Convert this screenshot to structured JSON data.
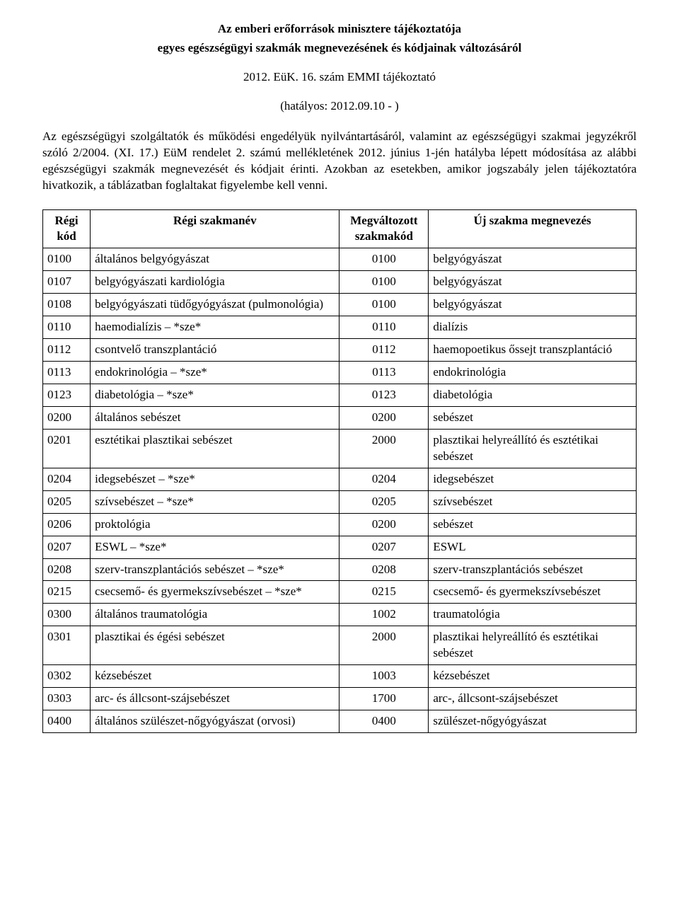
{
  "header": {
    "title": "Az emberi erőforrások minisztere tájékoztatója",
    "subtitle": "egyes egészségügyi szakmák megnevezésének és kódjainak változásáról",
    "reference": "2012. EüK. 16. szám EMMI tájékoztató",
    "effective": "(hatályos: 2012.09.10 - )"
  },
  "body": "Az egészségügyi szolgáltatók és működési engedélyük nyilvántartásáról, valamint az egészségügyi szakmai jegyzékről szóló 2/2004. (XI. 17.) EüM rendelet 2. számú mellékletének 2012. június 1-jén hatályba lépett módosítása az alábbi egészségügyi szakmák megnevezését és kódjait érinti. Azokban az esetekben, amikor jogszabály jelen tájékoztatóra hivatkozik, a táblázatban foglaltakat figyelembe kell venni.",
  "table": {
    "columns": {
      "old_code": "Régi kód",
      "old_name": "Régi szakmanév",
      "new_code": "Megváltozott szakmakód",
      "new_name": "Új szakma megnevezés"
    },
    "rows": [
      {
        "oc": "0100",
        "on": "általános belgyógyászat",
        "nc": "0100",
        "nn": "belgyógyászat"
      },
      {
        "oc": "0107",
        "on": "belgyógyászati kardiológia",
        "nc": "0100",
        "nn": "belgyógyászat"
      },
      {
        "oc": "0108",
        "on": "belgyógyászati tüdőgyógyászat (pulmonológia)",
        "nc": "0100",
        "nn": "belgyógyászat"
      },
      {
        "oc": "0110",
        "on": "haemodialízis – *sze*",
        "nc": "0110",
        "nn": "dialízis"
      },
      {
        "oc": "0112",
        "on": "csontvelő transzplantáció",
        "nc": "0112",
        "nn": "haemopoetikus őssejt transzplantáció"
      },
      {
        "oc": "0113",
        "on": "endokrinológia – *sze*",
        "nc": "0113",
        "nn": "endokrinológia"
      },
      {
        "oc": "0123",
        "on": "diabetológia – *sze*",
        "nc": "0123",
        "nn": "diabetológia"
      },
      {
        "oc": "0200",
        "on": "általános sebészet",
        "nc": "0200",
        "nn": "sebészet"
      },
      {
        "oc": "0201",
        "on": "esztétikai plasztikai sebészet",
        "nc": "2000",
        "nn": "plasztikai helyreállító és esztétikai sebészet"
      },
      {
        "oc": "0204",
        "on": "idegsebészet – *sze*",
        "nc": "0204",
        "nn": "idegsebészet"
      },
      {
        "oc": "0205",
        "on": "szívsebészet – *sze*",
        "nc": "0205",
        "nn": "szívsebészet"
      },
      {
        "oc": "0206",
        "on": "proktológia",
        "nc": "0200",
        "nn": "sebészet"
      },
      {
        "oc": "0207",
        "on": "ESWL – *sze*",
        "nc": "0207",
        "nn": "ESWL"
      },
      {
        "oc": "0208",
        "on": "szerv-transzplantációs sebészet – *sze*",
        "nc": "0208",
        "nn": "szerv-transzplantációs sebészet"
      },
      {
        "oc": "0215",
        "on": "csecsemő- és gyermekszívsebészet – *sze*",
        "nc": "0215",
        "nn": "csecsemő- és gyermekszívsebészet"
      },
      {
        "oc": "0300",
        "on": "általános traumatológia",
        "nc": "1002",
        "nn": "traumatológia"
      },
      {
        "oc": "0301",
        "on": "plasztikai és égési sebészet",
        "nc": "2000",
        "nn": "plasztikai helyreállító és esztétikai sebészet"
      },
      {
        "oc": "0302",
        "on": "kézsebészet",
        "nc": "1003",
        "nn": "kézsebészet"
      },
      {
        "oc": "0303",
        "on": "arc- és állcsont-szájsebészet",
        "nc": "1700",
        "nn": "arc-, állcsont-szájsebészet"
      },
      {
        "oc": "0400",
        "on": "általános szülészet-nőgyógyászat (orvosi)",
        "nc": "0400",
        "nn": "szülészet-nőgyógyászat"
      }
    ]
  }
}
